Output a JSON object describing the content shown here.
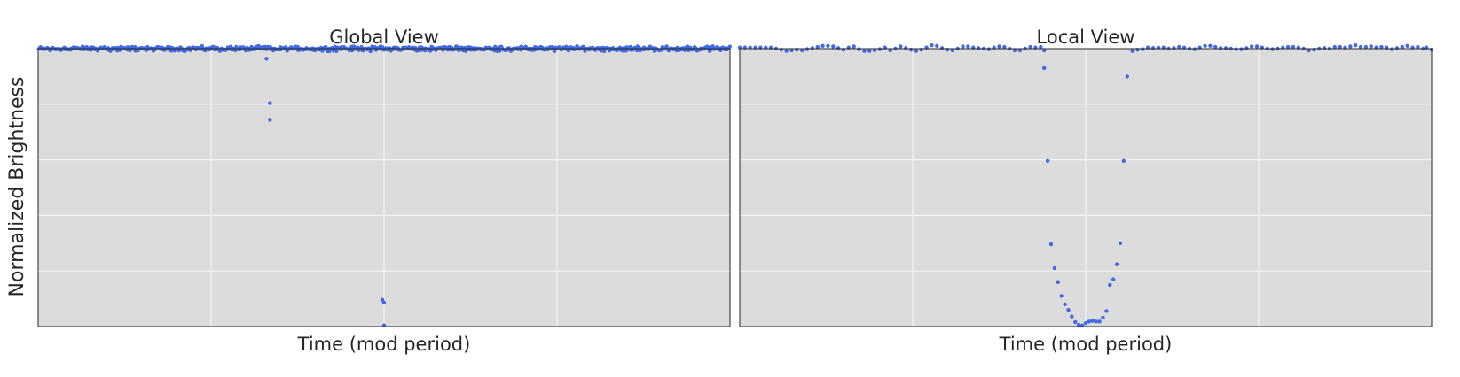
{
  "colors": {
    "background": "#ffffff",
    "panel": "#dcdcdc",
    "grid": "#f4f4f4",
    "frame": "#262626",
    "marker": "#4169e1",
    "text": "#262626"
  },
  "figure": {
    "ylabel": "Normalized Brightness"
  },
  "chart_data": [
    {
      "type": "scatter",
      "title": "Global View",
      "xlabel": "Time (mod period)",
      "ylabel": "Normalized Brightness",
      "xlim": [
        0,
        4
      ],
      "ylim": [
        0,
        5
      ],
      "x_ticks": [
        1,
        2,
        3
      ],
      "y_ticks": [
        1,
        2,
        3,
        4
      ],
      "tick_labels_shown": false,
      "grid": true,
      "baseline": 5,
      "baseline_noise": 0.05,
      "baseline_points": 620,
      "outliers": [
        {
          "x": 1.32,
          "y": 4.82
        },
        {
          "x": 1.34,
          "y": 4.02
        },
        {
          "x": 1.34,
          "y": 3.72
        },
        {
          "x": 1.99,
          "y": 0.48
        },
        {
          "x": 2.0,
          "y": 0.43
        },
        {
          "x": 2.0,
          "y": 0.02
        }
      ]
    },
    {
      "type": "scatter",
      "title": "Local View",
      "xlabel": "Time (mod period)",
      "ylabel": "Normalized Brightness",
      "xlim": [
        0,
        4
      ],
      "ylim": [
        0,
        5
      ],
      "x_ticks": [
        1,
        2,
        3
      ],
      "y_ticks": [
        1,
        2,
        3,
        4
      ],
      "tick_labels_shown": false,
      "grid": true,
      "points": [
        {
          "x": 0.0,
          "y": 5.02
        },
        {
          "x": 0.03,
          "y": 5.02
        },
        {
          "x": 0.06,
          "y": 5.02
        },
        {
          "x": 0.09,
          "y": 5.02
        },
        {
          "x": 0.12,
          "y": 5.02
        },
        {
          "x": 0.15,
          "y": 5.02
        },
        {
          "x": 0.18,
          "y": 5.02
        },
        {
          "x": 0.21,
          "y": 5.0
        },
        {
          "x": 0.24,
          "y": 4.98
        },
        {
          "x": 0.27,
          "y": 4.96
        },
        {
          "x": 0.3,
          "y": 4.97
        },
        {
          "x": 0.33,
          "y": 4.98
        },
        {
          "x": 0.36,
          "y": 4.97
        },
        {
          "x": 0.39,
          "y": 4.99
        },
        {
          "x": 0.42,
          "y": 5.01
        },
        {
          "x": 0.45,
          "y": 5.03
        },
        {
          "x": 0.48,
          "y": 5.05
        },
        {
          "x": 0.51,
          "y": 5.05
        },
        {
          "x": 0.54,
          "y": 5.04
        },
        {
          "x": 0.57,
          "y": 5.01
        },
        {
          "x": 0.6,
          "y": 4.98
        },
        {
          "x": 0.63,
          "y": 5.02
        },
        {
          "x": 0.66,
          "y": 5.04
        },
        {
          "x": 0.69,
          "y": 4.99
        },
        {
          "x": 0.72,
          "y": 4.96
        },
        {
          "x": 0.75,
          "y": 4.96
        },
        {
          "x": 0.78,
          "y": 4.97
        },
        {
          "x": 0.81,
          "y": 4.99
        },
        {
          "x": 0.84,
          "y": 5.02
        },
        {
          "x": 0.87,
          "y": 4.97
        },
        {
          "x": 0.9,
          "y": 5.0
        },
        {
          "x": 0.93,
          "y": 5.04
        },
        {
          "x": 0.96,
          "y": 5.01
        },
        {
          "x": 0.99,
          "y": 4.98
        },
        {
          "x": 1.02,
          "y": 4.96
        },
        {
          "x": 1.05,
          "y": 4.98
        },
        {
          "x": 1.08,
          "y": 5.02
        },
        {
          "x": 1.11,
          "y": 5.06
        },
        {
          "x": 1.14,
          "y": 5.05
        },
        {
          "x": 1.17,
          "y": 5.01
        },
        {
          "x": 1.2,
          "y": 4.98
        },
        {
          "x": 1.23,
          "y": 4.97
        },
        {
          "x": 1.26,
          "y": 5.0
        },
        {
          "x": 1.29,
          "y": 5.04
        },
        {
          "x": 1.32,
          "y": 5.04
        },
        {
          "x": 1.35,
          "y": 5.02
        },
        {
          "x": 1.38,
          "y": 5.01
        },
        {
          "x": 1.41,
          "y": 5.0
        },
        {
          "x": 1.44,
          "y": 4.99
        },
        {
          "x": 1.47,
          "y": 5.02
        },
        {
          "x": 1.5,
          "y": 5.04
        },
        {
          "x": 1.53,
          "y": 5.03
        },
        {
          "x": 1.56,
          "y": 5.0
        },
        {
          "x": 1.59,
          "y": 4.97
        },
        {
          "x": 1.62,
          "y": 4.97
        },
        {
          "x": 1.65,
          "y": 5.0
        },
        {
          "x": 1.68,
          "y": 5.03
        },
        {
          "x": 1.71,
          "y": 5.02
        },
        {
          "x": 1.74,
          "y": 5.03
        },
        {
          "x": 1.76,
          "y": 4.97
        },
        {
          "x": 1.76,
          "y": 4.65
        },
        {
          "x": 1.78,
          "y": 2.98
        },
        {
          "x": 1.8,
          "y": 1.48
        },
        {
          "x": 1.82,
          "y": 1.05
        },
        {
          "x": 1.84,
          "y": 0.8
        },
        {
          "x": 1.86,
          "y": 0.55
        },
        {
          "x": 1.88,
          "y": 0.4
        },
        {
          "x": 1.9,
          "y": 0.3
        },
        {
          "x": 1.92,
          "y": 0.18
        },
        {
          "x": 1.94,
          "y": 0.08
        },
        {
          "x": 1.96,
          "y": 0.03
        },
        {
          "x": 1.98,
          "y": 0.02
        },
        {
          "x": 2.0,
          "y": 0.06
        },
        {
          "x": 2.02,
          "y": 0.09
        },
        {
          "x": 2.04,
          "y": 0.1
        },
        {
          "x": 2.06,
          "y": 0.09
        },
        {
          "x": 2.08,
          "y": 0.09
        },
        {
          "x": 2.1,
          "y": 0.16
        },
        {
          "x": 2.12,
          "y": 0.28
        },
        {
          "x": 2.14,
          "y": 0.75
        },
        {
          "x": 2.16,
          "y": 0.85
        },
        {
          "x": 2.18,
          "y": 1.12
        },
        {
          "x": 2.2,
          "y": 1.5
        },
        {
          "x": 2.22,
          "y": 2.98
        },
        {
          "x": 2.24,
          "y": 4.5
        },
        {
          "x": 2.27,
          "y": 4.96
        },
        {
          "x": 2.3,
          "y": 4.98
        },
        {
          "x": 2.33,
          "y": 4.99
        },
        {
          "x": 2.36,
          "y": 5.02
        },
        {
          "x": 2.39,
          "y": 5.01
        },
        {
          "x": 2.42,
          "y": 5.02
        },
        {
          "x": 2.45,
          "y": 5.02
        },
        {
          "x": 2.48,
          "y": 5.0
        },
        {
          "x": 2.51,
          "y": 5.01
        },
        {
          "x": 2.54,
          "y": 5.03
        },
        {
          "x": 2.57,
          "y": 5.02
        },
        {
          "x": 2.6,
          "y": 5.0
        },
        {
          "x": 2.63,
          "y": 4.99
        },
        {
          "x": 2.66,
          "y": 5.02
        },
        {
          "x": 2.69,
          "y": 5.05
        },
        {
          "x": 2.72,
          "y": 5.05
        },
        {
          "x": 2.75,
          "y": 5.03
        },
        {
          "x": 2.78,
          "y": 5.01
        },
        {
          "x": 2.81,
          "y": 5.01
        },
        {
          "x": 2.84,
          "y": 5.0
        },
        {
          "x": 2.87,
          "y": 4.99
        },
        {
          "x": 2.9,
          "y": 4.99
        },
        {
          "x": 2.93,
          "y": 5.01
        },
        {
          "x": 2.96,
          "y": 5.04
        },
        {
          "x": 2.99,
          "y": 5.04
        },
        {
          "x": 3.02,
          "y": 5.02
        },
        {
          "x": 3.05,
          "y": 5.0
        },
        {
          "x": 3.08,
          "y": 4.99
        },
        {
          "x": 3.11,
          "y": 5.0
        },
        {
          "x": 3.14,
          "y": 5.02
        },
        {
          "x": 3.17,
          "y": 5.03
        },
        {
          "x": 3.2,
          "y": 5.03
        },
        {
          "x": 3.23,
          "y": 5.02
        },
        {
          "x": 3.26,
          "y": 5.0
        },
        {
          "x": 3.29,
          "y": 4.97
        },
        {
          "x": 3.32,
          "y": 4.98
        },
        {
          "x": 3.35,
          "y": 5.0
        },
        {
          "x": 3.38,
          "y": 5.01
        },
        {
          "x": 3.41,
          "y": 5.0
        },
        {
          "x": 3.44,
          "y": 5.03
        },
        {
          "x": 3.47,
          "y": 5.03
        },
        {
          "x": 3.5,
          "y": 5.02
        },
        {
          "x": 3.53,
          "y": 5.04
        },
        {
          "x": 3.56,
          "y": 5.06
        },
        {
          "x": 3.59,
          "y": 5.03
        },
        {
          "x": 3.62,
          "y": 5.03
        },
        {
          "x": 3.65,
          "y": 5.04
        },
        {
          "x": 3.68,
          "y": 5.02
        },
        {
          "x": 3.71,
          "y": 5.03
        },
        {
          "x": 3.74,
          "y": 5.02
        },
        {
          "x": 3.77,
          "y": 4.99
        },
        {
          "x": 3.8,
          "y": 5.01
        },
        {
          "x": 3.83,
          "y": 5.03
        },
        {
          "x": 3.86,
          "y": 5.05
        },
        {
          "x": 3.89,
          "y": 5.02
        },
        {
          "x": 3.92,
          "y": 5.03
        },
        {
          "x": 3.95,
          "y": 5.0
        },
        {
          "x": 3.97,
          "y": 5.02
        },
        {
          "x": 4.0,
          "y": 4.98
        }
      ]
    }
  ]
}
